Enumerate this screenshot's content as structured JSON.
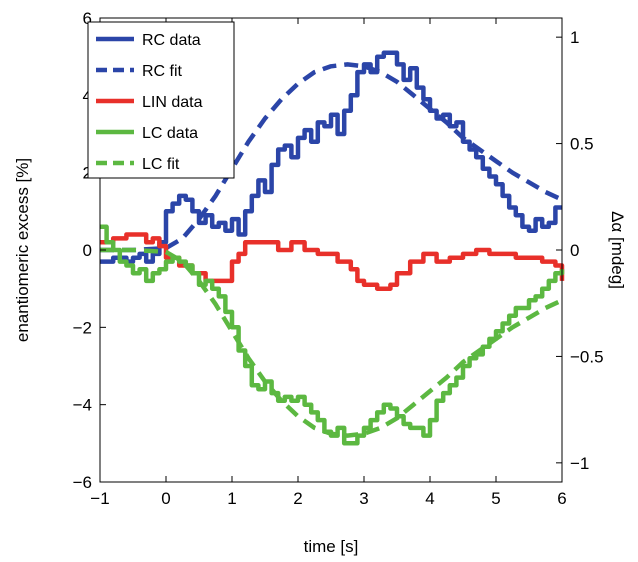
{
  "chart_data": {
    "type": "line",
    "xlabel": "time [s]",
    "ylabel": "enantiomeric excess [%]",
    "y2label": "Δα [mdeg]",
    "xlim": [
      -1,
      6
    ],
    "ylim": [
      -6,
      6
    ],
    "y2lim": [
      -1.09,
      1.09
    ],
    "xticks": [
      "−1",
      "0",
      "1",
      "2",
      "3",
      "4",
      "5",
      "6"
    ],
    "yticks": [
      "−6",
      "−4",
      "−2",
      "0",
      "2",
      "4",
      "6"
    ],
    "y2ticks": [
      "−1",
      "−0.5",
      "0",
      "0.5",
      "1"
    ],
    "y2tick_values": [
      -1,
      -0.5,
      0,
      0.5,
      1
    ],
    "legend": {
      "placement": "top-left"
    },
    "series": [
      {
        "name": "RC data",
        "color": "#2b45a8",
        "style": "solid",
        "x": [
          -1,
          -0.8,
          -0.6,
          -0.5,
          -0.4,
          -0.3,
          -0.2,
          -0.1,
          0,
          0.1,
          0.2,
          0.3,
          0.4,
          0.5,
          0.6,
          0.7,
          0.8,
          0.9,
          1.0,
          1.1,
          1.2,
          1.3,
          1.4,
          1.5,
          1.6,
          1.7,
          1.8,
          1.9,
          2.0,
          2.1,
          2.2,
          2.3,
          2.4,
          2.5,
          2.6,
          2.7,
          2.8,
          2.9,
          3.0,
          3.1,
          3.2,
          3.3,
          3.4,
          3.5,
          3.6,
          3.7,
          3.8,
          3.9,
          4.0,
          4.1,
          4.2,
          4.3,
          4.4,
          4.5,
          4.6,
          4.7,
          4.8,
          4.9,
          5.0,
          5.1,
          5.2,
          5.3,
          5.4,
          5.5,
          5.6,
          5.7,
          5.8,
          5.9,
          6.0
        ],
        "y": [
          -0.3,
          -0.2,
          -0.3,
          -0.2,
          -0.1,
          -0.3,
          -0.1,
          0.2,
          1.0,
          1.2,
          1.4,
          1.3,
          1.0,
          0.7,
          0.9,
          0.6,
          0.7,
          0.5,
          0.8,
          0.4,
          1.0,
          1.4,
          1.8,
          1.5,
          2.2,
          2.6,
          2.7,
          2.4,
          2.9,
          3.1,
          2.8,
          3.3,
          3.2,
          3.5,
          3.0,
          3.6,
          4.0,
          4.6,
          4.8,
          4.6,
          5.0,
          5.1,
          5.1,
          4.8,
          4.4,
          4.7,
          4.2,
          3.9,
          3.6,
          3.4,
          3.5,
          3.2,
          3.3,
          2.8,
          2.6,
          2.4,
          2.1,
          1.9,
          1.7,
          1.4,
          1.1,
          0.9,
          0.6,
          0.5,
          0.8,
          0.6,
          0.7,
          1.1,
          1.1
        ]
      },
      {
        "name": "RC fit",
        "color": "#2b45a8",
        "style": "dashed",
        "x": [
          -1,
          -0.5,
          0,
          0.25,
          0.5,
          0.75,
          1.0,
          1.25,
          1.5,
          1.75,
          2.0,
          2.25,
          2.5,
          2.75,
          3.0,
          3.25,
          3.5,
          3.75,
          4.0,
          4.25,
          4.5,
          4.75,
          5.0,
          5.25,
          5.5,
          5.75,
          6.0
        ],
        "y": [
          0,
          0,
          0.05,
          0.3,
          0.8,
          1.4,
          2.1,
          2.8,
          3.4,
          3.9,
          4.3,
          4.6,
          4.75,
          4.8,
          4.75,
          4.6,
          4.35,
          4.0,
          3.65,
          3.3,
          2.9,
          2.6,
          2.3,
          2.0,
          1.75,
          1.5,
          1.3
        ]
      },
      {
        "name": "LIN data",
        "color": "#e8302a",
        "style": "solid",
        "x": [
          -1,
          -0.8,
          -0.6,
          -0.4,
          -0.3,
          -0.2,
          -0.1,
          0,
          0.2,
          0.4,
          0.6,
          0.8,
          1.0,
          1.1,
          1.2,
          1.5,
          1.7,
          1.9,
          2.1,
          2.3,
          2.5,
          2.6,
          2.8,
          2.9,
          3.0,
          3.2,
          3.4,
          3.5,
          3.7,
          3.9,
          4.1,
          4.3,
          4.5,
          4.7,
          4.9,
          5.1,
          5.3,
          5.5,
          5.7,
          5.9,
          6.0
        ],
        "y": [
          0.2,
          0.3,
          0.4,
          0.4,
          0.2,
          0.3,
          0.1,
          -0.2,
          -0.4,
          -0.6,
          -0.8,
          -0.8,
          -0.3,
          -0.1,
          0.2,
          0.2,
          0.0,
          0.2,
          0.0,
          -0.1,
          -0.1,
          -0.3,
          -0.5,
          -0.8,
          -0.9,
          -1.0,
          -0.9,
          -0.6,
          -0.3,
          -0.1,
          -0.3,
          -0.2,
          -0.1,
          0.0,
          -0.1,
          -0.1,
          -0.2,
          -0.2,
          -0.3,
          -0.4,
          -0.8
        ]
      },
      {
        "name": "LC data",
        "color": "#5cb841",
        "style": "solid",
        "x": [
          -1,
          -0.9,
          -0.8,
          -0.7,
          -0.6,
          -0.5,
          -0.4,
          -0.3,
          -0.2,
          -0.1,
          0,
          0.1,
          0.2,
          0.3,
          0.4,
          0.5,
          0.6,
          0.7,
          0.8,
          0.9,
          1.0,
          1.1,
          1.2,
          1.3,
          1.4,
          1.5,
          1.6,
          1.7,
          1.8,
          1.9,
          2.0,
          2.1,
          2.2,
          2.3,
          2.4,
          2.5,
          2.6,
          2.7,
          2.8,
          2.9,
          3.0,
          3.1,
          3.2,
          3.3,
          3.4,
          3.5,
          3.6,
          3.7,
          3.8,
          3.9,
          4.0,
          4.1,
          4.2,
          4.3,
          4.4,
          4.5,
          4.6,
          4.7,
          4.8,
          4.9,
          5.0,
          5.1,
          5.2,
          5.3,
          5.4,
          5.5,
          5.6,
          5.7,
          5.8,
          5.9,
          6.0
        ],
        "y": [
          0.6,
          0.2,
          0.0,
          -0.3,
          -0.4,
          -0.6,
          -0.5,
          -0.8,
          -0.6,
          -0.5,
          -0.3,
          -0.2,
          -0.3,
          -0.4,
          -0.6,
          -0.9,
          -0.8,
          -1.0,
          -1.2,
          -1.6,
          -2.0,
          -2.6,
          -3.0,
          -3.5,
          -3.6,
          -3.4,
          -3.7,
          -3.9,
          -3.8,
          -3.9,
          -3.8,
          -4.0,
          -4.2,
          -4.4,
          -4.7,
          -4.8,
          -4.6,
          -5.0,
          -5.0,
          -4.8,
          -4.6,
          -4.4,
          -4.2,
          -4.0,
          -4.1,
          -4.3,
          -4.5,
          -4.6,
          -4.6,
          -4.8,
          -4.4,
          -3.9,
          -3.7,
          -3.5,
          -3.3,
          -3.0,
          -2.8,
          -2.7,
          -2.5,
          -2.3,
          -2.1,
          -1.9,
          -1.7,
          -1.5,
          -1.5,
          -1.3,
          -1.2,
          -1.0,
          -0.8,
          -0.6,
          -0.5
        ]
      },
      {
        "name": "LC fit",
        "color": "#5cb841",
        "style": "dashed",
        "x": [
          -1,
          -0.5,
          0,
          0.25,
          0.5,
          0.75,
          1.0,
          1.25,
          1.5,
          1.75,
          2.0,
          2.25,
          2.5,
          2.75,
          3.0,
          3.25,
          3.5,
          3.75,
          4.0,
          4.25,
          4.5,
          4.75,
          5.0,
          5.25,
          5.5,
          5.75,
          6.0
        ],
        "y": [
          0,
          0,
          -0.05,
          -0.3,
          -0.8,
          -1.4,
          -2.1,
          -2.8,
          -3.4,
          -3.9,
          -4.3,
          -4.6,
          -4.75,
          -4.8,
          -4.75,
          -4.6,
          -4.35,
          -4.0,
          -3.65,
          -3.3,
          -2.9,
          -2.6,
          -2.3,
          -2.0,
          -1.75,
          -1.5,
          -1.3
        ]
      }
    ]
  }
}
